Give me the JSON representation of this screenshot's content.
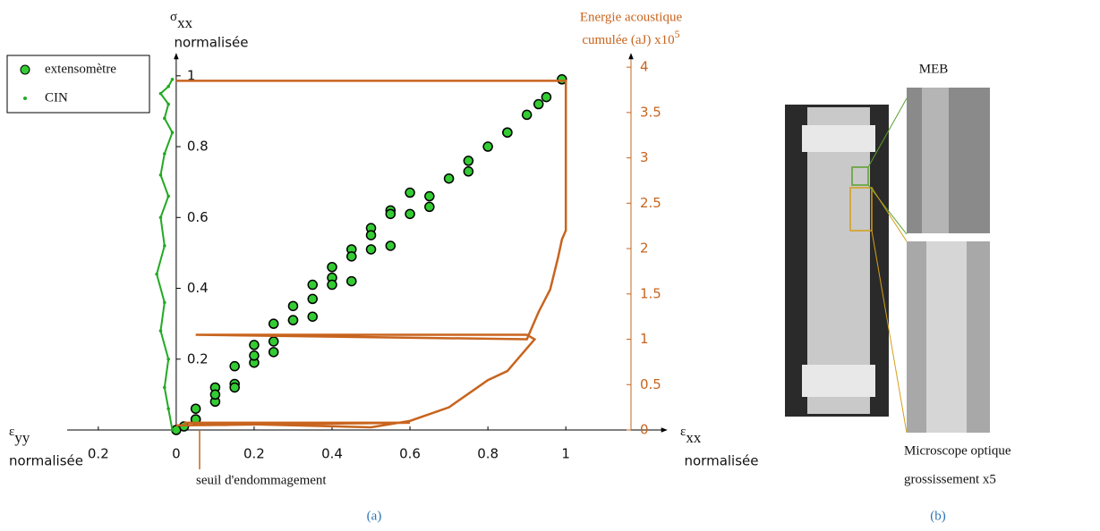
{
  "chart_data": {
    "type": "scatter",
    "y_label": "σ",
    "y_label_sub": "xx",
    "y_label_line2": "normalisée",
    "x_label": "ε",
    "x_label_sub": "xx",
    "x_label_line2": "normalisée",
    "x_label_left": "ε",
    "x_label_left_sub": "yy",
    "x_label_left_line2": "normalisée",
    "y2_label": "Energie acoustique",
    "y2_label_line2": "cumulée (aJ) x10",
    "y2_label_sup": "5",
    "xlim": [
      -0.28,
      1.25
    ],
    "xticks": [
      {
        "value": -0.2,
        "label": "0.2"
      },
      0,
      0.2,
      0.4,
      0.6,
      0.8,
      1
    ],
    "ylim": [
      0,
      1.05
    ],
    "yticks": [
      0.2,
      0.4,
      0.6,
      0.8,
      1
    ],
    "y2lim": [
      0,
      4.1
    ],
    "y2ticks": [
      0,
      0.5,
      1,
      1.5,
      2,
      2.5,
      3,
      3.5,
      4
    ],
    "y2_color": "#c8641e",
    "legend": "top-left",
    "series": [
      {
        "name": "extensomètre",
        "color": "#33cc33",
        "mode": "markers",
        "x": [
          0,
          0.05,
          0.1,
          0.15,
          0.2,
          0.25,
          0.3,
          0.35,
          0.4,
          0.45,
          0.5,
          0.55,
          0.6,
          0.55,
          0.5,
          0.45,
          0.4,
          0.35,
          0.3,
          0.25,
          0.2,
          0.15,
          0.1,
          0.05,
          0.02,
          0.1,
          0.2,
          0.3,
          0.4,
          0.5,
          0.6,
          0.65,
          0.7,
          0.75,
          0.8,
          0.85,
          0.9,
          0.95,
          0.99,
          0.93,
          0.85,
          0.75,
          0.65,
          0.55,
          0.45,
          0.35,
          0.25,
          0.15,
          0.05
        ],
        "values": [
          0,
          0.06,
          0.12,
          0.18,
          0.24,
          0.3,
          0.35,
          0.41,
          0.46,
          0.51,
          0.57,
          0.62,
          0.67,
          0.61,
          0.55,
          0.49,
          0.43,
          0.37,
          0.31,
          0.25,
          0.19,
          0.13,
          0.08,
          0.03,
          0.01,
          0.1,
          0.21,
          0.31,
          0.41,
          0.51,
          0.61,
          0.66,
          0.71,
          0.76,
          0.8,
          0.84,
          0.89,
          0.94,
          0.99,
          0.92,
          0.84,
          0.73,
          0.63,
          0.52,
          0.42,
          0.32,
          0.22,
          0.12,
          0.03
        ]
      },
      {
        "name": "CIN",
        "color": "#22aa22",
        "mode": "lines+markers",
        "x": [
          -0.01,
          -0.02,
          -0.03,
          -0.02,
          -0.04,
          -0.03,
          -0.05,
          -0.03,
          -0.04,
          -0.02,
          -0.04,
          -0.03,
          -0.01,
          -0.03,
          -0.02,
          -0.04,
          -0.02,
          -0.01
        ],
        "values": [
          0,
          0.06,
          0.12,
          0.2,
          0.28,
          0.36,
          0.44,
          0.52,
          0.6,
          0.66,
          0.72,
          0.78,
          0.84,
          0.88,
          0.92,
          0.95,
          0.97,
          0.99
        ]
      },
      {
        "color": "#c8641e",
        "mode": "lines",
        "axis": "y2",
        "x": [
          0.0,
          0.6,
          0.02,
          0.5,
          0.6,
          0.7,
          0.75,
          0.8,
          0.85,
          0.88,
          0.92,
          0.9,
          0.05,
          0.9,
          0.93,
          0.96,
          0.98,
          0.99,
          1.0,
          1.0,
          0.0
        ],
        "values": [
          0.05,
          0.08,
          0.08,
          0.03,
          0.1,
          0.25,
          0.4,
          0.55,
          0.65,
          0.8,
          1.0,
          1.05,
          1.05,
          1.0,
          1.3,
          1.55,
          1.9,
          2.1,
          2.2,
          3.85,
          3.85
        ]
      }
    ],
    "annotations": [
      {
        "text": "seuil d'endommagement",
        "x": 0.06
      }
    ]
  },
  "figure": {
    "panel_labels": [
      "(a)",
      "(b)"
    ],
    "photo_labels": [
      "MEB",
      "Microscope optique",
      "grossissement x5"
    ]
  }
}
